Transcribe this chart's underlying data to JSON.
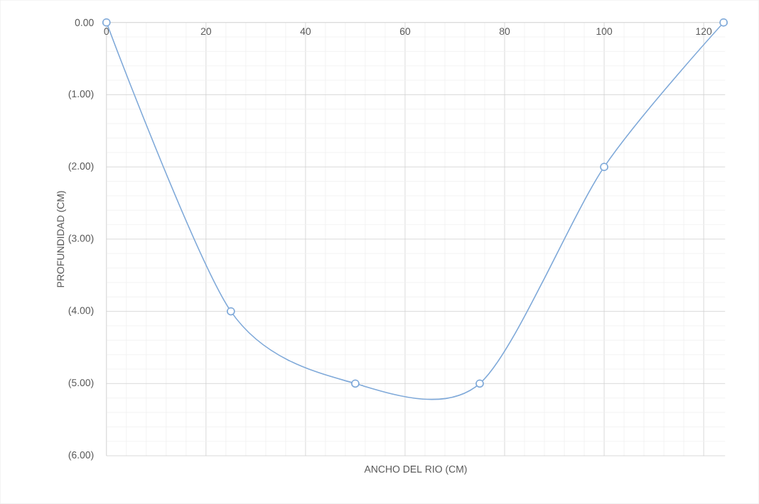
{
  "chart_data": {
    "type": "line",
    "xlabel": "ANCHO DEL RIO (CM)",
    "ylabel": "PROFUNDIDAD (CM)",
    "x": [
      0,
      25,
      50,
      75,
      100,
      124
    ],
    "series": [
      {
        "color": "#7fa9d9",
        "values": [
          0,
          -4,
          -5,
          -5,
          -2,
          0
        ]
      }
    ],
    "xlim": [
      0,
      124.3
    ],
    "ylim": [
      -6,
      0
    ],
    "xticks": [
      0,
      20,
      40,
      60,
      80,
      100,
      120
    ],
    "yticks": [
      {
        "value": 0,
        "label": "0.00"
      },
      {
        "value": -1,
        "label": "(1.00)"
      },
      {
        "value": -2,
        "label": "(2.00)"
      },
      {
        "value": -3,
        "label": "(3.00)"
      },
      {
        "value": -4,
        "label": "(4.00)"
      },
      {
        "value": -5,
        "label": "(5.00)"
      },
      {
        "value": -6,
        "label": "(6.00)"
      }
    ],
    "grid": true,
    "marker": "circle",
    "line_style": "solid"
  }
}
